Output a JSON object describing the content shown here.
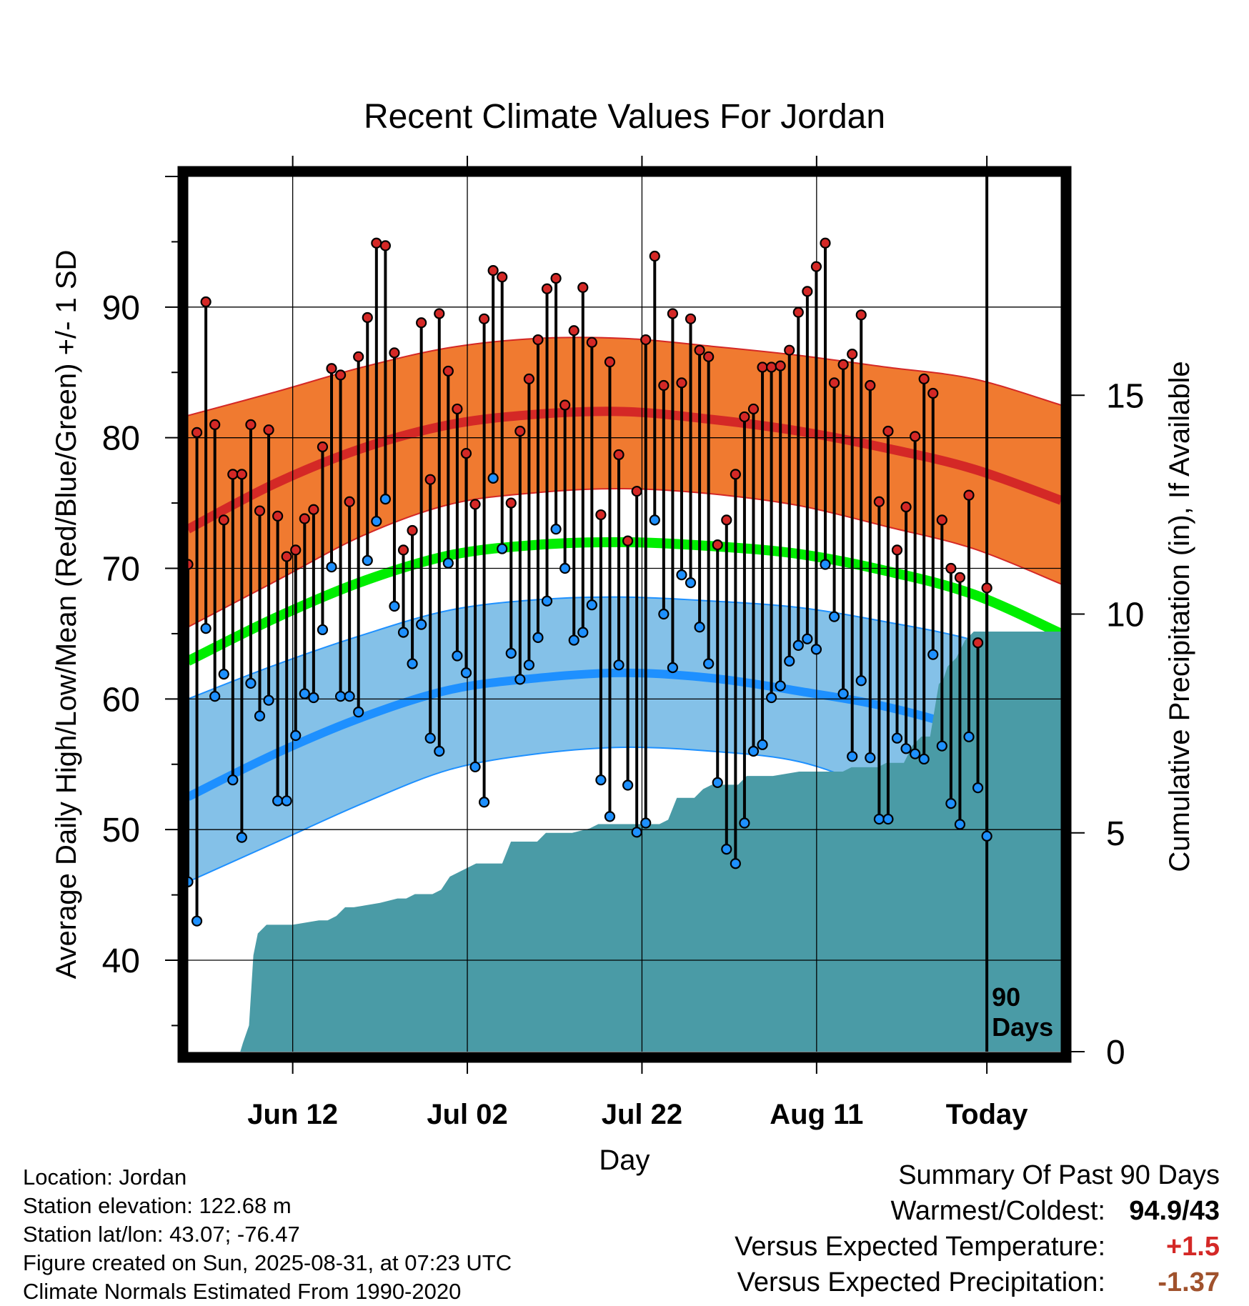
{
  "title": "Recent Climate Values For Jordan",
  "chart_data": {
    "type": "line",
    "title": "Recent Climate Values For Jordan",
    "xlabel": "Day",
    "ylabel": "Average Daily High/Low/Mean (Red/Blue/Green) +/- 1 SD",
    "y2label": "Cumulative Precipitation (in), If Available",
    "ylim": [
      33,
      100
    ],
    "y2lim": [
      0,
      20
    ],
    "xlim": [
      0,
      100
    ],
    "yticks": [
      40,
      50,
      60,
      70,
      80,
      90
    ],
    "y2ticks": [
      0,
      5,
      10,
      15
    ],
    "xticks": [
      {
        "day": 12,
        "label": "Jun 12"
      },
      {
        "day": 32,
        "label": "Jul 02"
      },
      {
        "day": 52,
        "label": "Jul 22"
      },
      {
        "day": 72,
        "label": "Aug 11"
      },
      {
        "day": 91.5,
        "label": "Today"
      }
    ],
    "today_marker": {
      "day": 91.5,
      "label_line1": "90",
      "label_line2": "Days"
    },
    "colors": {
      "high_band": "#f07a30",
      "high_line": "#d42826",
      "low_band": "#84c1e8",
      "low_line": "#1e90ff",
      "mean_line": "#00ee00",
      "precip": "#4a9ba6",
      "high_point": "#d42826",
      "low_point": "#1e90ff"
    },
    "normals": {
      "x": [
        0,
        10,
        20,
        30,
        40,
        50,
        60,
        70,
        80,
        90,
        100
      ],
      "high_mean": [
        73,
        76.5,
        79.2,
        81,
        81.8,
        82,
        81.4,
        80.5,
        79.2,
        77.6,
        75.2
      ],
      "high_upper": [
        81.7,
        83.5,
        85.4,
        86.9,
        87.6,
        87.6,
        87,
        86.3,
        85.4,
        84.5,
        82.5
      ],
      "high_lower": [
        65.5,
        69,
        72.5,
        74.9,
        75.8,
        76.1,
        75.7,
        74.8,
        73.2,
        71.5,
        68.8
      ],
      "mean": [
        62.9,
        66.2,
        69,
        71,
        71.8,
        72,
        71.7,
        71.1,
        69.8,
        68,
        65
      ],
      "low_mean": [
        52.5,
        55.8,
        58.6,
        60.7,
        61.6,
        62,
        61.6,
        60.6,
        59.4,
        57.5,
        54.8
      ],
      "low_upper": [
        60,
        62.6,
        64.9,
        66.8,
        67.6,
        67.8,
        67.5,
        67,
        65.9,
        64.5,
        62.2
      ],
      "low_lower": [
        46,
        49,
        52,
        54.6,
        55.8,
        56.3,
        56,
        55.2,
        53,
        51.5,
        47.8
      ]
    },
    "daily_high": [
      70.3,
      80.4,
      90.4,
      81,
      73.7,
      77.2,
      77.2,
      81,
      74.4,
      80.6,
      74,
      70.9,
      71.4,
      73.8,
      74.5,
      79.3,
      85.3,
      84.8,
      75.1,
      86.2,
      89.2,
      94.9,
      94.7,
      86.5,
      71.4,
      72.9,
      88.8,
      76.8,
      89.5,
      85.1,
      82.2,
      78.8,
      74.9,
      89.1,
      92.8,
      92.3,
      75,
      80.5,
      84.5,
      87.5,
      91.4,
      92.2,
      82.5,
      88.2,
      91.5,
      87.3,
      74.1,
      85.8,
      78.7,
      72.1,
      75.9,
      87.5,
      93.9,
      84,
      89.5,
      84.2,
      89.1,
      86.7,
      86.2,
      71.8,
      73.7,
      77.2,
      81.6,
      82.2,
      85.4,
      85.4,
      85.5,
      86.7,
      89.6,
      91.2,
      93.1,
      94.9,
      84.2,
      85.6,
      86.4,
      89.4,
      84,
      75.1,
      80.5,
      71.4,
      74.7,
      80.1,
      84.5,
      83.4,
      73.7,
      70,
      69.3,
      75.6,
      64.3,
      68.5
    ],
    "daily_low": [
      46,
      43,
      65.4,
      60.2,
      61.9,
      53.8,
      49.4,
      61.2,
      58.7,
      59.9,
      52.2,
      52.2,
      57.2,
      60.4,
      60.1,
      65.3,
      70.1,
      60.2,
      60.2,
      59,
      70.6,
      73.6,
      75.3,
      67.1,
      65.1,
      62.7,
      65.7,
      57,
      56,
      70.4,
      63.3,
      62,
      54.8,
      52.1,
      76.9,
      71.5,
      63.5,
      61.5,
      62.6,
      64.7,
      67.5,
      73,
      70,
      64.5,
      65.1,
      67.2,
      53.8,
      51,
      62.6,
      53.4,
      49.8,
      50.5,
      73.7,
      66.5,
      62.4,
      69.5,
      68.9,
      65.5,
      62.7,
      53.6,
      48.5,
      47.4,
      50.5,
      56,
      56.5,
      60.1,
      61,
      62.9,
      64.1,
      64.6,
      63.8,
      70.3,
      66.3,
      60.4,
      55.6,
      61.4,
      55.5,
      50.8,
      50.8,
      57,
      56.2,
      55.8,
      55.4,
      63.4,
      56.4,
      52,
      50.4,
      57.1,
      53.2,
      49.5
    ],
    "cumulative_precip": {
      "x": [
        0,
        6,
        6.3,
        7,
        7.5,
        8,
        9,
        12,
        15,
        16,
        17,
        18,
        19,
        22,
        24,
        25,
        26,
        28,
        29,
        30,
        31,
        32,
        33,
        35,
        36,
        37,
        38,
        40,
        41,
        44,
        46,
        47,
        48,
        51,
        53,
        54,
        55,
        56,
        57,
        58,
        59,
        60,
        62,
        63,
        64,
        66,
        67,
        70,
        73,
        75,
        76,
        77,
        78,
        79,
        80,
        82,
        83,
        84,
        84.5,
        85,
        86,
        86.5,
        87,
        88,
        88.5,
        89,
        90,
        91,
        92,
        96,
        100
      ],
      "y": [
        0,
        0,
        0.2,
        0.6,
        2.2,
        2.7,
        2.9,
        2.9,
        3,
        3,
        3.1,
        3.3,
        3.3,
        3.4,
        3.5,
        3.5,
        3.6,
        3.6,
        3.7,
        4,
        4.1,
        4.2,
        4.3,
        4.3,
        4.3,
        4.8,
        4.8,
        4.8,
        5,
        5,
        5.1,
        5.2,
        5.2,
        5.2,
        5.2,
        5.2,
        5.3,
        5.8,
        5.8,
        5.8,
        6,
        6.1,
        6.1,
        6.1,
        6.3,
        6.3,
        6.3,
        6.4,
        6.4,
        6.4,
        6.5,
        6.5,
        6.5,
        6.5,
        6.6,
        6.6,
        7,
        7.2,
        7.2,
        7.2,
        8.4,
        8.5,
        8.8,
        9,
        9.2,
        9.4,
        9.6,
        9.6,
        9.6,
        9.6,
        9.6
      ]
    }
  },
  "footer_left": {
    "location": "Location: Jordan",
    "elevation": "Station elevation: 122.68 m",
    "latlon": "Station lat/lon: 43.07; -76.47",
    "created": "Figure created on Sun, 2025-08-31, at 07:23 UTC",
    "normals": "Climate Normals Estimated From 1990-2020"
  },
  "summary": {
    "heading": "Summary Of Past 90 Days",
    "warm_label": "Warmest/Coldest:",
    "warm_value": "94.9/43",
    "temp_label": "Versus Expected Temperature:",
    "temp_value": "+1.5",
    "precip_label": "Versus Expected Precipitation:",
    "precip_value": "-1.37"
  }
}
